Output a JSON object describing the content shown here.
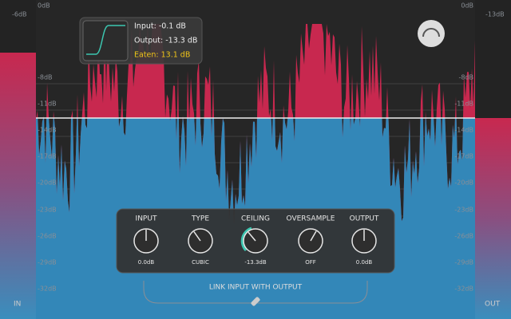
{
  "meter": {
    "left_peak": "-6dB",
    "right_peak": "-13dB",
    "in_label": "IN",
    "out_label": "OUT",
    "scale_left": [
      "0dB",
      "-8dB",
      "-11dB",
      "-14dB",
      "-17dB",
      "-20dB",
      "-23dB",
      "-26dB",
      "-29dB",
      "-32dB"
    ],
    "scale_right": [
      "0dB",
      "-8dB",
      "-11dB",
      "-14dB",
      "-17dB",
      "-20dB",
      "-23dB",
      "-26dB",
      "-29dB",
      "-32dB"
    ]
  },
  "info": {
    "input": "Input: -0.1 dB",
    "output": "Output: -13.3 dB",
    "eaten": "Eaten: 13.1 dB"
  },
  "knobs": [
    {
      "label": "INPUT",
      "value": "0.0dB"
    },
    {
      "label": "TYPE",
      "value": "CUBIC"
    },
    {
      "label": "CEILING",
      "value": "-13.3dB"
    },
    {
      "label": "OVERSAMPLE",
      "value": "OFF"
    },
    {
      "label": "OUTPUT",
      "value": "0.0dB"
    }
  ],
  "link": "LINK INPUT WITH OUTPUT"
}
